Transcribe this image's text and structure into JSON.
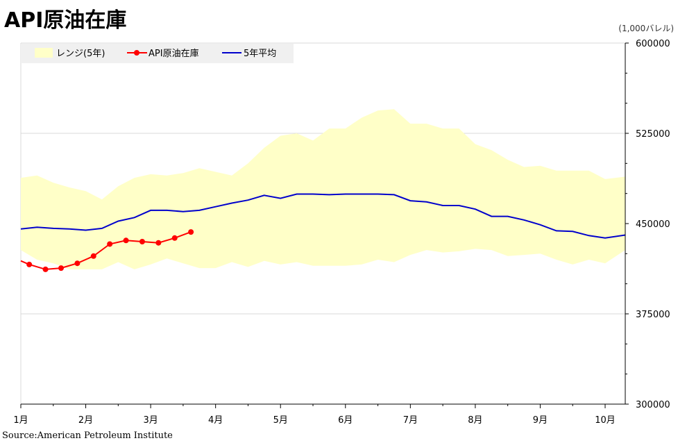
{
  "header": {
    "title": "API原油在庫",
    "unit": "(1,000バレル)",
    "source": "Source:American Petroleum Institute"
  },
  "chart_data": {
    "type": "line",
    "title": "API原油在庫",
    "xlabel": "",
    "ylabel": "(1,000バレル)",
    "ylim": [
      300000,
      600000
    ],
    "xlim": [
      1,
      10.31
    ],
    "y_ticks": [
      300000,
      375000,
      450000,
      525000,
      600000
    ],
    "x_ticks": [
      {
        "x": 1,
        "label": "1月"
      },
      {
        "x": 2,
        "label": "2月"
      },
      {
        "x": 3,
        "label": "3月"
      },
      {
        "x": 4,
        "label": "4月"
      },
      {
        "x": 5,
        "label": "5月"
      },
      {
        "x": 6,
        "label": "6月"
      },
      {
        "x": 7,
        "label": "7月"
      },
      {
        "x": 8,
        "label": "8月"
      },
      {
        "x": 9,
        "label": "9月"
      },
      {
        "x": 10,
        "label": "10月"
      }
    ],
    "grid": "horizontal",
    "legend_placement": "top-left",
    "colors": {
      "range": "#ffffc8",
      "api": "#ff0000",
      "avg": "#0000cc",
      "grid": "#d9d9d9"
    },
    "series": [
      {
        "name": "レンジ(5年)",
        "kind": "band",
        "x": [
          1.0,
          1.25,
          1.5,
          1.75,
          2.0,
          2.25,
          2.5,
          2.75,
          3.0,
          3.25,
          3.5,
          3.75,
          4.0,
          4.25,
          4.5,
          4.75,
          5.0,
          5.25,
          5.5,
          5.75,
          6.0,
          6.25,
          6.5,
          6.75,
          7.0,
          7.25,
          7.5,
          7.75,
          8.0,
          8.25,
          8.5,
          8.75,
          9.0,
          9.25,
          9.5,
          9.75,
          10.0,
          10.31
        ],
        "upper": [
          488000,
          490000,
          484000,
          480000,
          477000,
          470000,
          481000,
          488000,
          491000,
          490000,
          492000,
          496000,
          493000,
          490000,
          500000,
          513000,
          523000,
          525000,
          519000,
          529000,
          529000,
          538000,
          544000,
          545000,
          533000,
          533000,
          529000,
          529000,
          516000,
          511000,
          503000,
          497000,
          498000,
          494000,
          494000,
          494000,
          487000,
          489000
        ],
        "lower": [
          428000,
          420000,
          417000,
          412000,
          412000,
          412000,
          418000,
          412000,
          416000,
          421000,
          417000,
          413000,
          413000,
          418000,
          414000,
          419000,
          416000,
          418000,
          415000,
          415000,
          415000,
          416000,
          420000,
          418000,
          424000,
          428000,
          426000,
          427000,
          429000,
          428000,
          423000,
          424000,
          425000,
          420000,
          416000,
          420000,
          417000,
          428000
        ]
      },
      {
        "name": "API原油在庫",
        "kind": "line-markers",
        "x": [
          1.0,
          1.13,
          1.38,
          1.62,
          1.87,
          2.12,
          2.37,
          2.62,
          2.87,
          3.12,
          3.37,
          3.62
        ],
        "values": [
          419000,
          416000,
          412000,
          413000,
          417000,
          423000,
          433000,
          436000,
          435000,
          434000,
          438000,
          443000
        ]
      },
      {
        "name": "5年平均",
        "kind": "line",
        "x": [
          1.0,
          1.25,
          1.5,
          1.75,
          2.0,
          2.25,
          2.5,
          2.75,
          3.0,
          3.25,
          3.5,
          3.75,
          4.0,
          4.25,
          4.5,
          4.75,
          5.0,
          5.25,
          5.5,
          5.75,
          6.0,
          6.25,
          6.5,
          6.75,
          7.0,
          7.25,
          7.5,
          7.75,
          8.0,
          8.25,
          8.5,
          8.75,
          9.0,
          9.25,
          9.5,
          9.75,
          10.0,
          10.31
        ],
        "values": [
          445500,
          447000,
          446000,
          445500,
          444500,
          446000,
          452000,
          455000,
          461000,
          461000,
          460000,
          461000,
          464000,
          467000,
          469500,
          473500,
          471000,
          474500,
          474500,
          474000,
          474500,
          474500,
          474500,
          474000,
          469000,
          468000,
          465000,
          465000,
          462000,
          456000,
          456000,
          453000,
          449000,
          444000,
          443500,
          440000,
          438000,
          440500
        ]
      }
    ]
  }
}
